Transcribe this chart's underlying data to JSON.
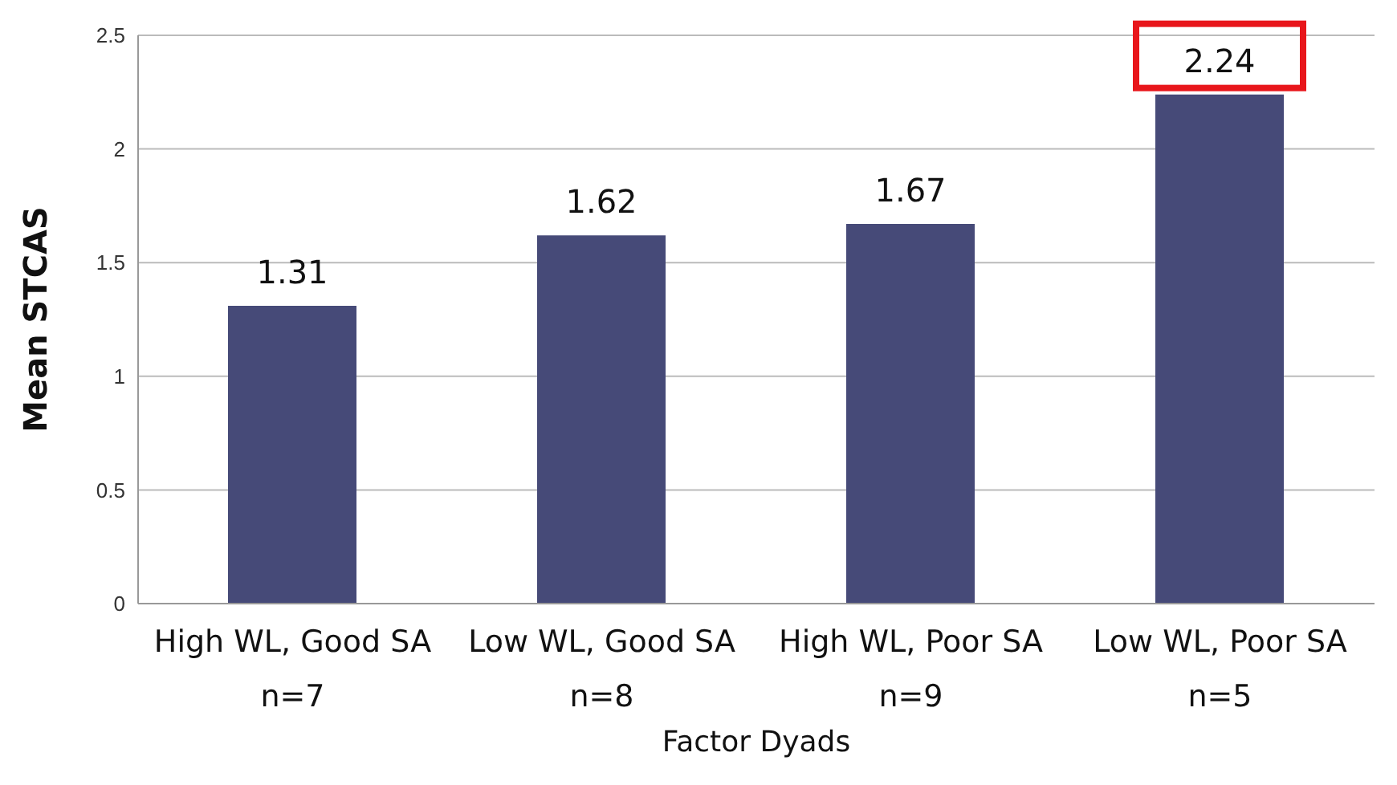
{
  "chart_data": {
    "type": "bar",
    "xlabel": "Factor Dyads",
    "ylabel": "Mean STCAS",
    "categories": [
      "High WL, Good SA\nn=7",
      "Low WL, Good SA\nn=8",
      "High WL, Poor SA\nn=9",
      "Low WL, Poor SA\nn=5"
    ],
    "values": [
      1.31,
      1.62,
      1.67,
      2.24
    ],
    "color": "#464a78",
    "ylim": [
      0,
      2.5
    ],
    "yticks": [
      0,
      0.5,
      1,
      1.5,
      2,
      2.5
    ],
    "grid": "y",
    "data_labels": true
  }
}
